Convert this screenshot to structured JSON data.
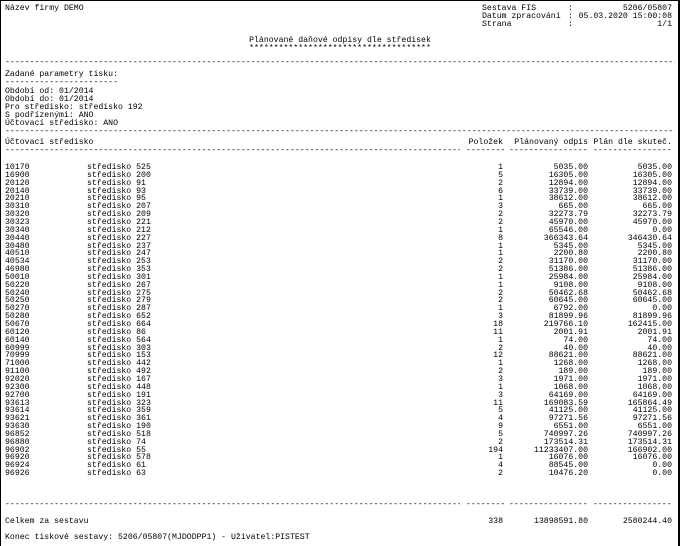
{
  "header": {
    "company": "Název firmy DEMO",
    "report_label": "Sestava FIS",
    "report_value": "5206/05807",
    "date_label": "Datum zpracování",
    "date_value": "05.03.2020 15:00:08",
    "page_label": "Strana",
    "page_value": "1/1",
    "colon": ":"
  },
  "title": "Plánované daňové odpisy dle středisek",
  "title_underline": "*************************************",
  "params": {
    "heading": "Zadané parametry tisku:",
    "underline": "-----------------------",
    "lines": [
      "Období od: 01/2014",
      "Období do: 01/2014",
      "Pro středisko: středisko 192",
      "S podřízenými: ANO",
      "Účtovací středisko: ANO"
    ]
  },
  "columns": [
    "Účtovací středisko",
    "Položek",
    "Plánovaný odpis",
    "Plán dle skuteč."
  ],
  "rows": [
    [
      "10170",
      "středisko 525",
      "1",
      "5035.00",
      "5035.00"
    ],
    [
      "16900",
      "středisko 200",
      "5",
      "16305.00",
      "16305.00"
    ],
    [
      "20120",
      "středisko 91",
      "2",
      "12894.00",
      "12894.00"
    ],
    [
      "20140",
      "středisko 93",
      "6",
      "33739.00",
      "33739.00"
    ],
    [
      "20210",
      "středisko 95",
      "1",
      "38612.00",
      "38612.00"
    ],
    [
      "30310",
      "středisko 207",
      "3",
      "665.00",
      "665.00"
    ],
    [
      "30320",
      "středisko 209",
      "2",
      "32273.79",
      "32273.79"
    ],
    [
      "30323",
      "středisko 221",
      "2",
      "45970.00",
      "45970.00"
    ],
    [
      "30340",
      "středisko 212",
      "1",
      "65546.00",
      "0.00"
    ],
    [
      "30440",
      "středisko 227",
      "8",
      "366343.64",
      "346430.64"
    ],
    [
      "30480",
      "středisko 237",
      "1",
      "5345.00",
      "5345.00"
    ],
    [
      "40510",
      "středisko 247",
      "1",
      "2200.80",
      "2200.80"
    ],
    [
      "40534",
      "středisko 253",
      "2",
      "31170.00",
      "31170.00"
    ],
    [
      "46980",
      "středisko 353",
      "2",
      "51386.00",
      "51386.00"
    ],
    [
      "50010",
      "středisko 301",
      "1",
      "25984.00",
      "25984.00"
    ],
    [
      "50220",
      "středisko 267",
      "1",
      "9108.00",
      "9108.00"
    ],
    [
      "50240",
      "středisko 275",
      "2",
      "50462.68",
      "50462.68"
    ],
    [
      "50250",
      "středisko 279",
      "2",
      "60645.00",
      "60645.00"
    ],
    [
      "50270",
      "středisko 287",
      "1",
      "6792.00",
      "0.00"
    ],
    [
      "50280",
      "středisko 652",
      "3",
      "81899.96",
      "81899.96"
    ],
    [
      "50670",
      "středisko 664",
      "18",
      "219766.10",
      "162415.00"
    ],
    [
      "60120",
      "středisko 86",
      "11",
      "2001.91",
      "2001.91"
    ],
    [
      "60140",
      "středisko 564",
      "1",
      "74.00",
      "74.00"
    ],
    [
      "60999",
      "středisko 303",
      "2",
      "40.00",
      "40.00"
    ],
    [
      "70999",
      "středisko 153",
      "12",
      "88621.00",
      "88621.00"
    ],
    [
      "71000",
      "středisko 442",
      "1",
      "1268.00",
      "1268.00"
    ],
    [
      "91100",
      "středisko 492",
      "2",
      "189.00",
      "189.00"
    ],
    [
      "92020",
      "středisko 167",
      "3",
      "1971.00",
      "1971.00"
    ],
    [
      "92300",
      "středisko 448",
      "1",
      "1068.00",
      "1068.00"
    ],
    [
      "92700",
      "středisko 191",
      "3",
      "64169.00",
      "64169.00"
    ],
    [
      "93613",
      "středisko 323",
      "11",
      "169083.59",
      "165864.49"
    ],
    [
      "93614",
      "středisko 359",
      "5",
      "41125.00",
      "41125.00"
    ],
    [
      "93621",
      "středisko 361",
      "4",
      "97271.56",
      "97271.56"
    ],
    [
      "93630",
      "středisko 190",
      "9",
      "6551.00",
      "6551.00"
    ],
    [
      "96852",
      "středisko 518",
      "5",
      "740997.26",
      "740997.26"
    ],
    [
      "96880",
      "středisko 74",
      "2",
      "173514.31",
      "173514.31"
    ],
    [
      "96902",
      "středisko 55",
      "194",
      "11233407.00",
      "166902.00"
    ],
    [
      "96920",
      "středisko 578",
      "1",
      "16076.00",
      "16076.00"
    ],
    [
      "96924",
      "středisko 61",
      "4",
      "88545.00",
      "0.00"
    ],
    [
      "96926",
      "středisko 63",
      "2",
      "10476.20",
      "0.00"
    ]
  ],
  "total": {
    "label": "Celkem za sestavu",
    "count": "338",
    "planned": "13898591.80",
    "actual": "2580244.40"
  },
  "footer": "Konec tiskové sestavy: 5206/05807(MJDODPP1) - Uživatel:PISTEST"
}
